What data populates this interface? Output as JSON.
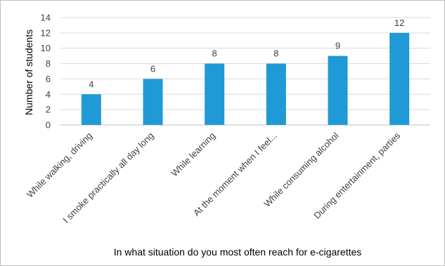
{
  "colors": {
    "bar": "#1f9ad6",
    "gridline": "#d9d9d9",
    "axis": "#bfbfbf",
    "text": "#404040"
  },
  "chart_data": {
    "type": "bar",
    "categories": [
      "While walking, driving",
      "I smoke practically all day long",
      "While learning",
      "At the moment when I feel...",
      "While consuming alcohol",
      "During entertainment, parties"
    ],
    "values": [
      4,
      6,
      8,
      8,
      9,
      12
    ],
    "xlabel": "In what situation do you most often reach for e-cigarettes",
    "ylabel": "Number of students",
    "ylim": [
      0,
      14
    ],
    "yticks": [
      0,
      2,
      4,
      6,
      8,
      10,
      12,
      14
    ],
    "grid": true,
    "data_labels": true
  }
}
